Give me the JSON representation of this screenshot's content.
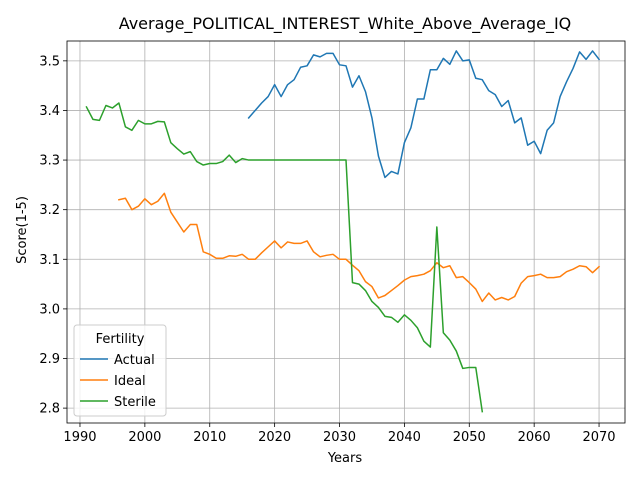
{
  "chart_data": {
    "type": "line",
    "title": "Average_POLITICAL_INTEREST_White_Above_Average_IQ",
    "xlabel": "Years",
    "ylabel": "Score(1-5)",
    "xlim": [
      1988,
      2074
    ],
    "ylim": [
      2.77,
      3.54
    ],
    "xticks": [
      1990,
      2000,
      2010,
      2020,
      2030,
      2040,
      2050,
      2060,
      2070
    ],
    "yticks": [
      2.8,
      2.9,
      3.0,
      3.1,
      3.2,
      3.3,
      3.4,
      3.5
    ],
    "ytick_labels": [
      "2.8",
      "2.9",
      "3.0",
      "3.1",
      "3.2",
      "3.3",
      "3.4",
      "3.5"
    ],
    "grid": true,
    "legend": {
      "title": "Fertility",
      "position": "lower-left"
    },
    "series": [
      {
        "name": "Actual",
        "color": "#1f77b4",
        "x": [
          2016,
          2017,
          2018,
          2019,
          2020,
          2021,
          2022,
          2023,
          2024,
          2025,
          2026,
          2027,
          2028,
          2029,
          2030,
          2031,
          2032,
          2033,
          2034,
          2035,
          2036,
          2037,
          2038,
          2039,
          2040,
          2041,
          2042,
          2043,
          2044,
          2045,
          2046,
          2047,
          2048,
          2049,
          2050,
          2051,
          2052,
          2053,
          2054,
          2055,
          2056,
          2057,
          2058,
          2059,
          2060,
          2061,
          2062,
          2063,
          2064,
          2065,
          2066,
          2067,
          2068,
          2069,
          2070
        ],
        "y": [
          3.385,
          3.4,
          3.415,
          3.428,
          3.452,
          3.428,
          3.452,
          3.462,
          3.487,
          3.49,
          3.512,
          3.508,
          3.515,
          3.515,
          3.492,
          3.49,
          3.447,
          3.47,
          3.438,
          3.385,
          3.308,
          3.265,
          3.277,
          3.272,
          3.335,
          3.365,
          3.423,
          3.423,
          3.482,
          3.482,
          3.505,
          3.493,
          3.52,
          3.5,
          3.502,
          3.465,
          3.462,
          3.44,
          3.432,
          3.408,
          3.42,
          3.375,
          3.385,
          3.33,
          3.338,
          3.313,
          3.36,
          3.375,
          3.428,
          3.458,
          3.485,
          3.518,
          3.503,
          3.52,
          3.503
        ]
      },
      {
        "name": "Ideal",
        "color": "#ff7f0e",
        "x": [
          1996,
          1997,
          1998,
          1999,
          2000,
          2001,
          2002,
          2003,
          2004,
          2005,
          2006,
          2007,
          2008,
          2009,
          2010,
          2011,
          2012,
          2013,
          2014,
          2015,
          2016,
          2017,
          2018,
          2019,
          2020,
          2021,
          2022,
          2023,
          2024,
          2025,
          2026,
          2027,
          2028,
          2029,
          2030,
          2031,
          2032,
          2033,
          2034,
          2035,
          2036,
          2037,
          2038,
          2039,
          2040,
          2041,
          2042,
          2043,
          2044,
          2045,
          2046,
          2047,
          2048,
          2049,
          2050,
          2051,
          2052,
          2053,
          2054,
          2055,
          2056,
          2057,
          2058,
          2059,
          2060,
          2061,
          2062,
          2063,
          2064,
          2065,
          2066,
          2067,
          2068,
          2069,
          2070
        ],
        "y": [
          3.22,
          3.223,
          3.2,
          3.207,
          3.222,
          3.21,
          3.217,
          3.233,
          3.195,
          3.175,
          3.155,
          3.17,
          3.17,
          3.115,
          3.11,
          3.102,
          3.102,
          3.107,
          3.106,
          3.11,
          3.1,
          3.1,
          3.113,
          3.125,
          3.137,
          3.123,
          3.135,
          3.132,
          3.132,
          3.137,
          3.115,
          3.105,
          3.108,
          3.11,
          3.1,
          3.1,
          3.088,
          3.077,
          3.055,
          3.045,
          3.022,
          3.027,
          3.037,
          3.047,
          3.058,
          3.065,
          3.067,
          3.07,
          3.077,
          3.093,
          3.083,
          3.087,
          3.063,
          3.065,
          3.053,
          3.04,
          3.015,
          3.032,
          3.018,
          3.023,
          3.018,
          3.025,
          3.052,
          3.065,
          3.067,
          3.07,
          3.063,
          3.063,
          3.065,
          3.075,
          3.08,
          3.087,
          3.085,
          3.073,
          3.085
        ]
      },
      {
        "name": "Sterile",
        "color": "#2ca02c",
        "x": [
          1991,
          1992,
          1993,
          1994,
          1995,
          1996,
          1997,
          1998,
          1999,
          2000,
          2001,
          2002,
          2003,
          2004,
          2005,
          2006,
          2007,
          2008,
          2009,
          2010,
          2011,
          2012,
          2013,
          2014,
          2015,
          2016,
          2017,
          2018,
          2019,
          2020,
          2021,
          2022,
          2023,
          2024,
          2025,
          2026,
          2027,
          2028,
          2029,
          2030,
          2031,
          2032,
          2033,
          2034,
          2035,
          2036,
          2037,
          2038,
          2039,
          2040,
          2041,
          2042,
          2043,
          2044,
          2045,
          2046,
          2047,
          2048,
          2049,
          2050,
          2051,
          2052
        ],
        "y": [
          3.407,
          3.382,
          3.38,
          3.41,
          3.405,
          3.415,
          3.367,
          3.36,
          3.38,
          3.373,
          3.373,
          3.378,
          3.377,
          3.335,
          3.323,
          3.312,
          3.317,
          3.297,
          3.29,
          3.293,
          3.293,
          3.297,
          3.31,
          3.295,
          3.303,
          3.3,
          3.3,
          3.3,
          3.3,
          3.3,
          3.3,
          3.3,
          3.3,
          3.3,
          3.3,
          3.3,
          3.3,
          3.3,
          3.3,
          3.3,
          3.3,
          3.053,
          3.05,
          3.037,
          3.015,
          3.003,
          2.985,
          2.983,
          2.973,
          2.988,
          2.977,
          2.962,
          2.935,
          2.923,
          3.165,
          2.952,
          2.937,
          2.915,
          2.88,
          2.882,
          2.882,
          2.793
        ]
      }
    ]
  }
}
